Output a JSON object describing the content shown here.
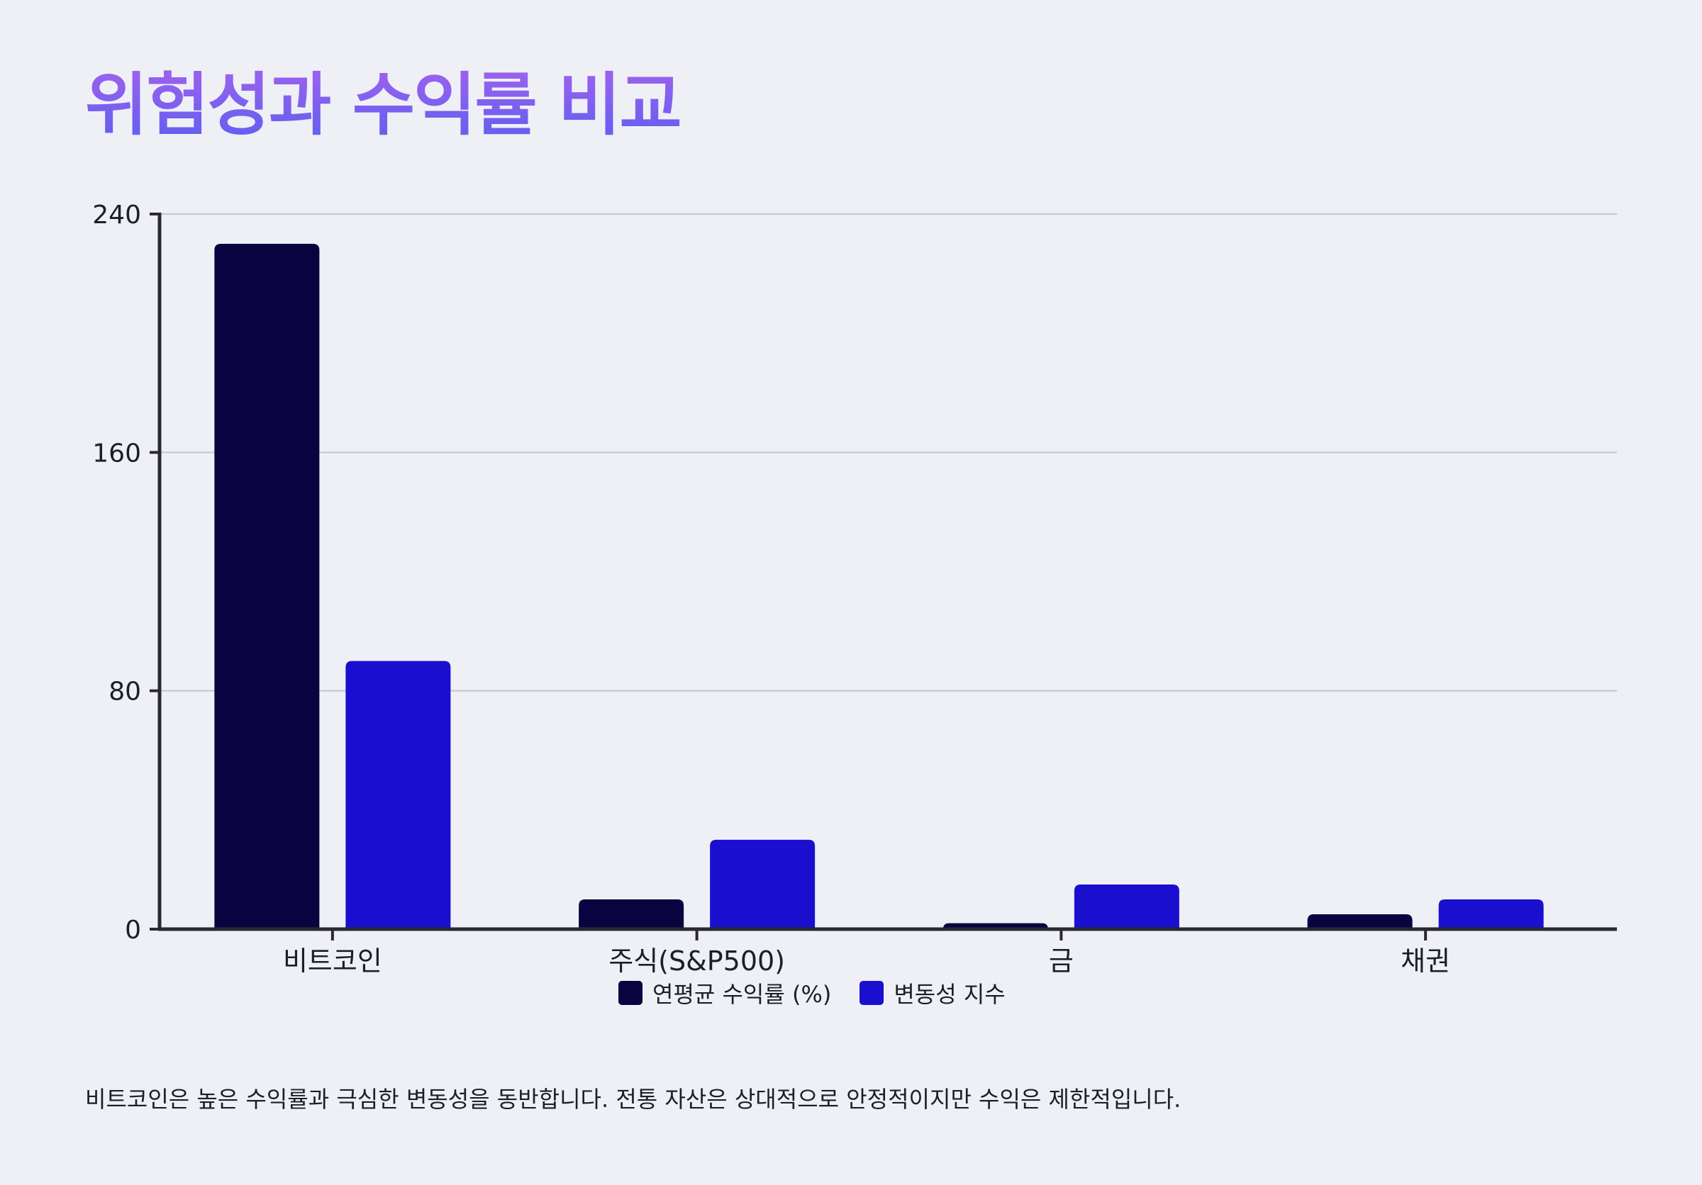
{
  "title": "위험성과 수익률 비교",
  "caption": "비트코인은 높은 수익률과 극심한 변동성을 동반합니다. 전통 자산은 상대적으로 안정적이지만 수익은 제한적입니다.",
  "colors": {
    "series_return": "#0a0340",
    "series_volatility": "#1b0fcf",
    "grid": "#c4c5cf",
    "axis": "#2a2a2e"
  },
  "chart_data": {
    "type": "bar",
    "categories": [
      "비트코인",
      "주식(S&P500)",
      "금",
      "채권"
    ],
    "series": [
      {
        "name": "연평균 수익률 (%)",
        "values": [
          230,
          10,
          2,
          5
        ]
      },
      {
        "name": "변동성 지수",
        "values": [
          90,
          30,
          15,
          10
        ]
      }
    ],
    "yticks": [
      0,
      80,
      160,
      240
    ],
    "ylim": [
      0,
      240
    ],
    "grid": true,
    "legend_position": "bottom-center"
  }
}
